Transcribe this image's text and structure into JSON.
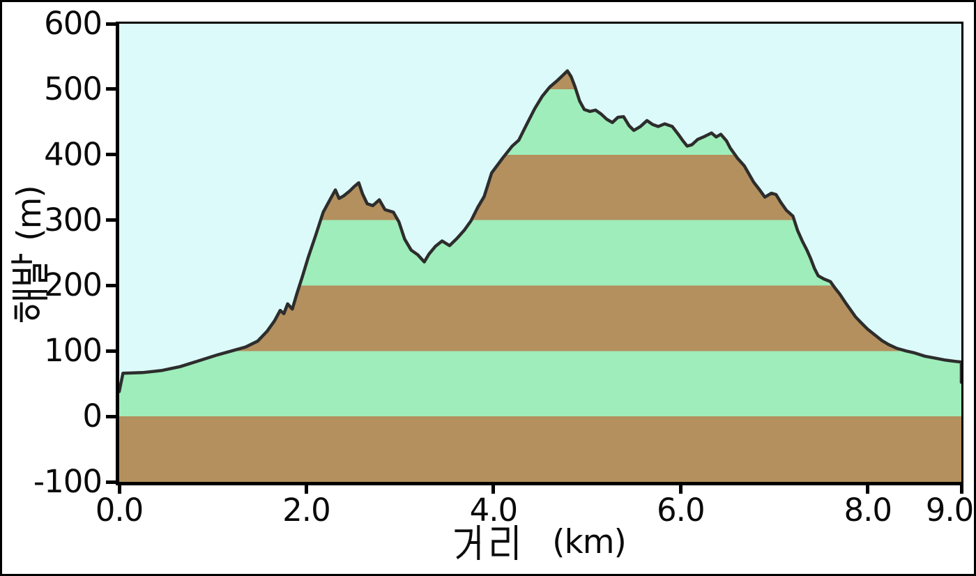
{
  "chart_data": {
    "type": "area",
    "title": "",
    "xlabel": "거리 (km)",
    "xlabel_korean": "거리",
    "xlabel_unit": "(km)",
    "ylabel": "해발 (m)",
    "ylabel_korean": "해발",
    "ylabel_unit": "(m)",
    "xlim": [
      0,
      9
    ],
    "ylim": [
      -100,
      600
    ],
    "x_ticks": [
      0,
      2,
      4,
      6,
      8,
      9
    ],
    "x_tick_labels": [
      "0.0",
      "2.0",
      "4.0",
      "6.0",
      "8.0",
      "9.0"
    ],
    "y_ticks": [
      600,
      500,
      400,
      300,
      200,
      100,
      0,
      -100
    ],
    "y_tick_labels": [
      "600",
      "500",
      "400",
      "300",
      "200",
      "100",
      "0",
      "-100"
    ],
    "grid": false,
    "legend": "none",
    "band_interval_m": 100,
    "colors": {
      "sky": "#DCFAF9",
      "band_green": "#9FEDBA",
      "band_brown": "#B3905E",
      "profile_line": "#2D2D2D",
      "axis": "#000000",
      "background": "#FFFFFF"
    },
    "series": [
      {
        "name": "elevation_profile",
        "x": [
          0.0,
          0.04,
          0.25,
          0.45,
          0.65,
          0.85,
          1.05,
          1.2,
          1.35,
          1.48,
          1.58,
          1.66,
          1.72,
          1.76,
          1.8,
          1.85,
          1.9,
          1.96,
          2.02,
          2.1,
          2.18,
          2.26,
          2.31,
          2.35,
          2.4,
          2.46,
          2.51,
          2.56,
          2.6,
          2.65,
          2.71,
          2.78,
          2.84,
          2.93,
          2.99,
          3.05,
          3.12,
          3.19,
          3.26,
          3.31,
          3.38,
          3.45,
          3.53,
          3.61,
          3.69,
          3.76,
          3.83,
          3.9,
          3.98,
          4.1,
          4.2,
          4.27,
          4.35,
          4.44,
          4.52,
          4.6,
          4.68,
          4.74,
          4.79,
          4.83,
          4.87,
          4.92,
          4.97,
          5.03,
          5.09,
          5.15,
          5.21,
          5.27,
          5.33,
          5.39,
          5.45,
          5.5,
          5.57,
          5.64,
          5.7,
          5.76,
          5.83,
          5.91,
          5.97,
          6.02,
          6.07,
          6.12,
          6.18,
          6.26,
          6.33,
          6.38,
          6.43,
          6.49,
          6.53,
          6.61,
          6.68,
          6.78,
          6.85,
          6.9,
          6.97,
          7.02,
          7.07,
          7.13,
          7.2,
          7.25,
          7.3,
          7.35,
          7.39,
          7.43,
          7.47,
          7.53,
          7.6,
          7.65,
          7.7,
          7.76,
          7.82,
          7.87,
          7.93,
          8.0,
          8.07,
          8.15,
          8.22,
          8.31,
          8.41,
          8.5,
          8.61,
          8.72,
          8.83,
          8.94,
          9.0,
          9.0
        ],
        "y": [
          38,
          66,
          67,
          70,
          76,
          85,
          94,
          100,
          106,
          115,
          130,
          146,
          162,
          157,
          172,
          164,
          188,
          215,
          243,
          277,
          312,
          333,
          346,
          333,
          337,
          344,
          351,
          357,
          340,
          325,
          322,
          331,
          316,
          312,
          297,
          271,
          254,
          247,
          236,
          248,
          260,
          268,
          261,
          272,
          285,
          299,
          319,
          336,
          372,
          395,
          413,
          422,
          445,
          470,
          489,
          503,
          513,
          521,
          528,
          519,
          504,
          482,
          469,
          466,
          468,
          462,
          454,
          449,
          457,
          458,
          444,
          437,
          443,
          452,
          446,
          443,
          447,
          443,
          432,
          422,
          413,
          415,
          423,
          428,
          433,
          427,
          431,
          421,
          410,
          394,
          383,
          358,
          345,
          335,
          341,
          339,
          327,
          315,
          306,
          284,
          268,
          254,
          241,
          226,
          215,
          210,
          206,
          196,
          187,
          174,
          162,
          152,
          143,
          133,
          125,
          116,
          110,
          104,
          100,
          97,
          92,
          89,
          86,
          84,
          83,
          52
        ]
      }
    ]
  }
}
